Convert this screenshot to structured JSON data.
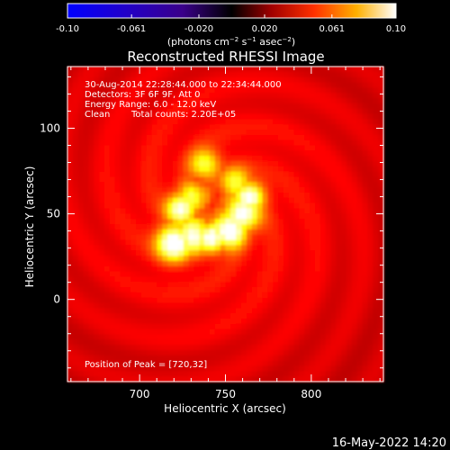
{
  "colorbar": {
    "ticks": [
      "-0.10",
      "-0.061",
      "-0.020",
      "0.020",
      "0.061",
      "0.10"
    ],
    "min": -0.1,
    "max": 0.1,
    "unit_label": "(photons cm",
    "unit_exp1": "−2",
    "unit_mid": " s",
    "unit_exp2": "−1",
    "unit_mid2": " asec",
    "unit_exp3": "−2",
    "unit_end": ")"
  },
  "title": "Reconstructed RHESSI Image",
  "annotations": {
    "line1": "30-Aug-2014 22:28:44.000 to 22:34:44.000",
    "line2": "Detectors: 3F 6F 9F, Att 0",
    "line3": "Energy Range: 6.0 - 12.0 keV",
    "line4_a": "Clean",
    "line4_b": "Total counts: 2.20E+05",
    "peak": "Position of Peak = [720,32]"
  },
  "footer_timestamp": "16-May-2022 14:20",
  "chart_data": {
    "type": "heatmap",
    "title": "Reconstructed RHESSI Image",
    "xlabel": "Heliocentric X (arcsec)",
    "ylabel": "Heliocentric Y (arcsec)",
    "xlim": [
      658,
      842
    ],
    "ylim": [
      -48,
      136
    ],
    "xticks": [
      "700",
      "750",
      "800"
    ],
    "xtick_values": [
      700,
      750,
      800
    ],
    "yticks": [
      "0",
      "50",
      "100"
    ],
    "ytick_values": [
      0,
      50,
      100
    ],
    "colormap": "hot",
    "peak_position": [
      720,
      32
    ],
    "source_loop": {
      "blobs": [
        {
          "x": 720,
          "y": 33,
          "intensity": 1.0,
          "sigma": 7
        },
        {
          "x": 731,
          "y": 37,
          "intensity": 0.85,
          "sigma": 7
        },
        {
          "x": 742,
          "y": 36,
          "intensity": 0.85,
          "sigma": 6
        },
        {
          "x": 752,
          "y": 40,
          "intensity": 0.95,
          "sigma": 7
        },
        {
          "x": 760,
          "y": 50,
          "intensity": 0.9,
          "sigma": 7
        },
        {
          "x": 764,
          "y": 60,
          "intensity": 0.85,
          "sigma": 6
        },
        {
          "x": 756,
          "y": 68,
          "intensity": 0.6,
          "sigma": 6
        },
        {
          "x": 724,
          "y": 53,
          "intensity": 0.85,
          "sigma": 6
        },
        {
          "x": 731,
          "y": 60,
          "intensity": 0.55,
          "sigma": 6
        },
        {
          "x": 738,
          "y": 79,
          "intensity": 0.6,
          "sigma": 6
        }
      ],
      "background_level": 0.3
    }
  }
}
